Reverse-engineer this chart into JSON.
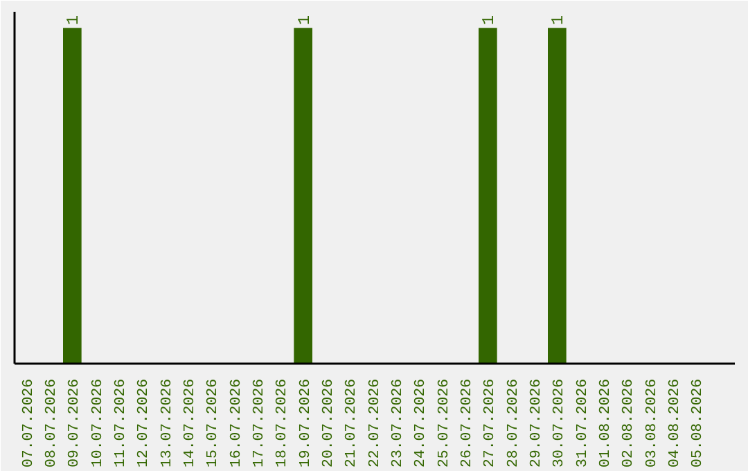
{
  "chart_data": {
    "type": "bar",
    "tick_labels": "x",
    "color": "#336600",
    "categories": [
      "07.07.2026",
      "08.07.2026",
      "09.07.2026",
      "10.07.2026",
      "11.07.2026",
      "12.07.2026",
      "13.07.2026",
      "14.07.2026",
      "15.07.2026",
      "16.07.2026",
      "17.07.2026",
      "18.07.2026",
      "19.07.2026",
      "20.07.2026",
      "21.07.2026",
      "22.07.2026",
      "23.07.2026",
      "24.07.2026",
      "25.07.2026",
      "26.07.2026",
      "27.07.2026",
      "28.07.2026",
      "29.07.2026",
      "30.07.2026",
      "31.07.2026",
      "01.08.2026",
      "02.08.2026",
      "03.08.2026",
      "04.08.2026",
      "05.08.2026"
    ],
    "values": [
      0,
      0,
      1,
      0,
      0,
      0,
      0,
      0,
      0,
      0,
      0,
      0,
      1,
      0,
      0,
      0,
      0,
      0,
      0,
      0,
      1,
      0,
      0,
      1,
      0,
      0,
      0,
      0,
      0,
      0
    ],
    "value_labels": [
      null,
      null,
      "1",
      null,
      null,
      null,
      null,
      null,
      null,
      null,
      null,
      null,
      "1",
      null,
      null,
      null,
      null,
      null,
      null,
      null,
      "1",
      null,
      null,
      "1",
      null,
      null,
      null,
      null,
      null,
      null
    ],
    "grid": false
  }
}
